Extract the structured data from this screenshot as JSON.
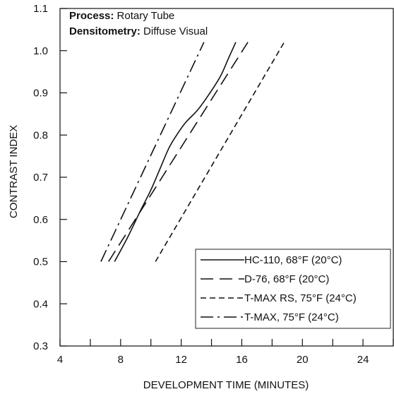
{
  "chart_data": {
    "type": "line",
    "xlabel": "DEVELOPMENT TIME (MINUTES)",
    "ylabel": "CONTRAST INDEX",
    "xlim": [
      4,
      26
    ],
    "ylim": [
      0.3,
      1.1
    ],
    "x_ticks": [
      4,
      8,
      12,
      16,
      20,
      24
    ],
    "x_tick_labels": [
      "4",
      "8",
      "12",
      "16",
      "20",
      "24"
    ],
    "y_ticks": [
      0.3,
      0.4,
      0.5,
      0.6,
      0.7,
      0.8,
      0.9,
      1.0,
      1.1
    ],
    "y_tick_labels": [
      "0.3",
      "0.4",
      "0.5",
      "0.6",
      "0.7",
      "0.8",
      "0.9",
      "1.0",
      "1.1"
    ],
    "grid": false,
    "legend_position": "bottom-right",
    "annotation": {
      "process_label": "Process:",
      "process_value": " Rotary Tube",
      "densitometry_label": "Densitometry:",
      "densitometry_value": " Diffuse Visual"
    },
    "series": [
      {
        "name": "HC-110, 68°F (20°C)",
        "dash": "solid",
        "x": [
          7.6,
          8.5,
          9.3,
          10.0,
          10.6,
          11.2,
          11.7,
          12.3,
          13.1,
          13.9,
          14.6,
          15.1,
          15.6
        ],
        "y": [
          0.5,
          0.56,
          0.62,
          0.67,
          0.72,
          0.77,
          0.8,
          0.83,
          0.86,
          0.9,
          0.94,
          0.98,
          1.02
        ]
      },
      {
        "name": "D-76, 68°F (20°C)",
        "dash": "long",
        "x": [
          7.2,
          16.4
        ],
        "y": [
          0.5,
          1.02
        ]
      },
      {
        "name": "T-MAX RS, 75°F (24°C)",
        "dash": "short",
        "x": [
          10.3,
          18.8
        ],
        "y": [
          0.5,
          1.02
        ]
      },
      {
        "name": "T-MAX, 75°F (24°C)",
        "dash": "dashdot",
        "x": [
          6.7,
          13.5
        ],
        "y": [
          0.5,
          1.02
        ]
      }
    ]
  }
}
